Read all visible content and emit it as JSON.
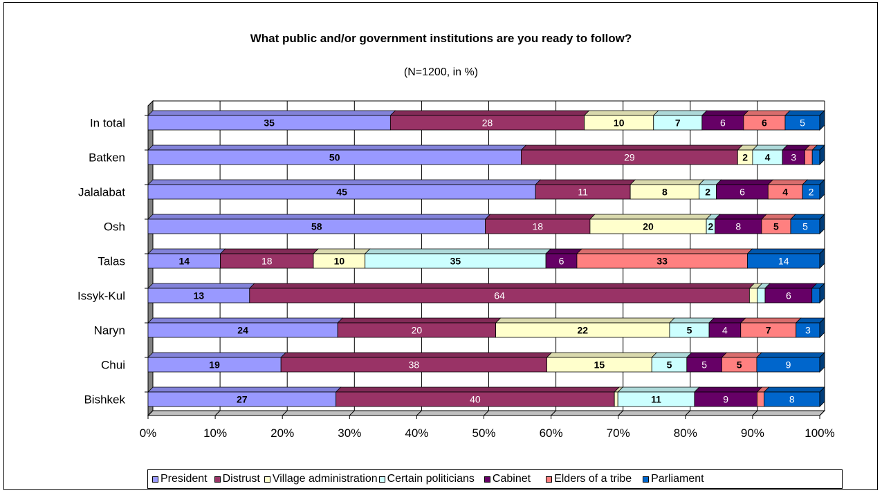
{
  "chart_data": {
    "type": "bar",
    "orientation": "horizontal",
    "stacked": "percent",
    "title": "What public and/or government institutions are you ready to follow?",
    "subtitle": "(N=1200, in %)",
    "categories": [
      "In total",
      "Batken",
      "Jalalabat",
      "Osh",
      "Talas",
      "Issyk-Kul",
      "Naryn",
      "Chui",
      "Bishkek"
    ],
    "x_ticks": [
      "0%",
      "10%",
      "20%",
      "30%",
      "40%",
      "50%",
      "60%",
      "70%",
      "80%",
      "90%",
      "100%"
    ],
    "xlim": [
      0,
      100
    ],
    "grid": true,
    "legend_position": "bottom",
    "series": [
      {
        "name": "President",
        "color": "#9999FF",
        "label_color": "#000000",
        "label_bold": true,
        "values": [
          35,
          50,
          45,
          58,
          14,
          13,
          24,
          19,
          27
        ],
        "labels": [
          "35",
          "50",
          "45",
          "58",
          "14",
          "13",
          "24",
          "19",
          "27"
        ]
      },
      {
        "name": "Distrust",
        "color": "#993366",
        "label_color": "#FFFFFF",
        "label_bold": false,
        "values": [
          28,
          29,
          11,
          18,
          18,
          64,
          20,
          38,
          40
        ],
        "labels": [
          "28",
          "29",
          "11",
          "18",
          "18",
          "64",
          "20",
          "38",
          "40"
        ]
      },
      {
        "name": "Village administration",
        "color": "#FFFFCC",
        "label_color": "#000000",
        "label_bold": true,
        "values": [
          10,
          2,
          8,
          20,
          10,
          1,
          22,
          15,
          0.5
        ],
        "labels": [
          "10",
          "2",
          "8",
          "20",
          "10",
          "",
          "22",
          "15",
          ""
        ]
      },
      {
        "name": "Certain politicians",
        "color": "#CCFFFF",
        "label_color": "#000000",
        "label_bold": true,
        "values": [
          7,
          4,
          2,
          1.5,
          35,
          1,
          5,
          5,
          11
        ],
        "labels": [
          "7",
          "4",
          "2",
          "2",
          "35",
          "",
          "5",
          "5",
          "11"
        ]
      },
      {
        "name": "Cabinet",
        "color": "#660066",
        "label_color": "#FFFFFF",
        "label_bold": false,
        "values": [
          6,
          3,
          6,
          8,
          6,
          6,
          4,
          5,
          9
        ],
        "labels": [
          "6",
          "3",
          "6",
          "8",
          "6",
          "6",
          "4",
          "5",
          "9"
        ]
      },
      {
        "name": "Elders of a tribe",
        "color": "#FF8080",
        "label_color": "#000000",
        "label_bold": true,
        "values": [
          6,
          1,
          4,
          5,
          33,
          0,
          7,
          5,
          1
        ],
        "labels": [
          "6",
          "",
          "4",
          "5",
          "33",
          "",
          "7",
          "5",
          ""
        ]
      },
      {
        "name": "Parliament",
        "color": "#0066CC",
        "label_color": "#FFFFFF",
        "label_bold": false,
        "values": [
          5,
          1,
          2,
          5,
          14,
          1,
          3,
          9,
          8
        ],
        "labels": [
          "5",
          "",
          "2",
          "5",
          "14",
          "",
          "3",
          "9",
          "8"
        ]
      }
    ]
  }
}
